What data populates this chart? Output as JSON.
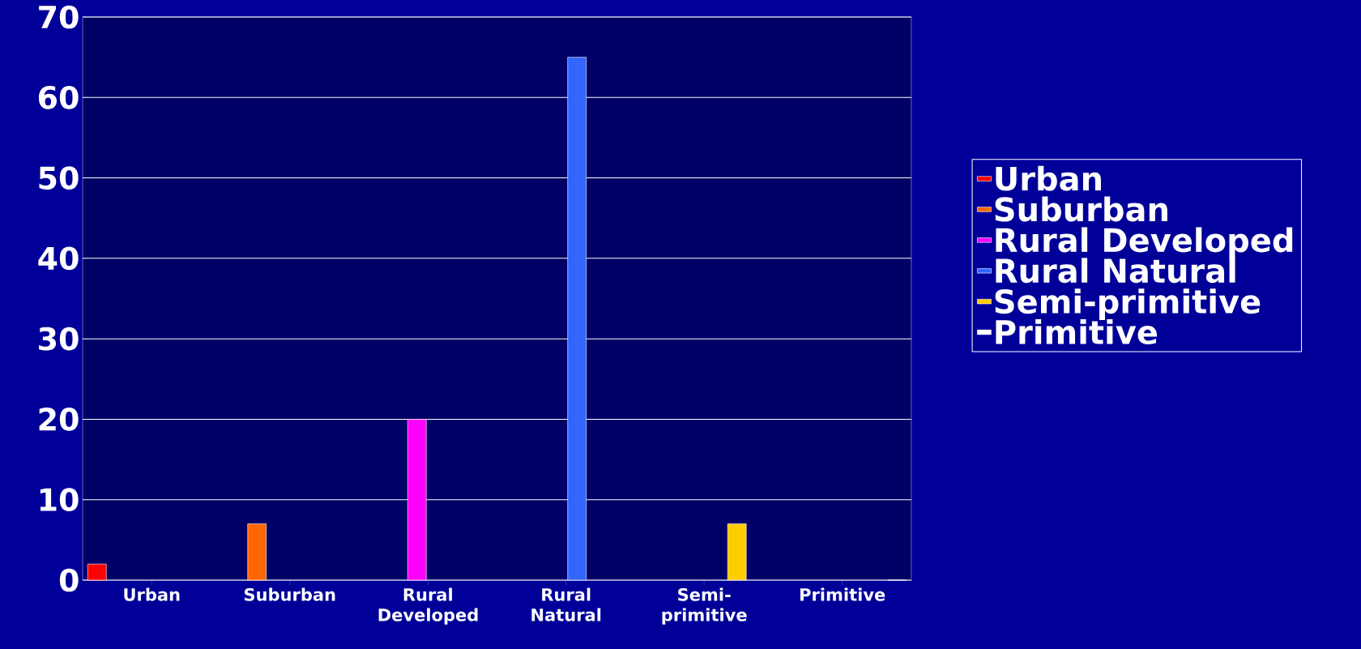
{
  "chart_data": {
    "type": "bar",
    "categories": [
      "Urban",
      "Suburban",
      "Rural Developed",
      "Rural Natural",
      "Semi-primitive",
      "Primitive"
    ],
    "series": [
      {
        "name": "Urban",
        "color": "#ff0000",
        "values": [
          2,
          null,
          null,
          null,
          null,
          null
        ]
      },
      {
        "name": "Suburban",
        "color": "#ff6600",
        "values": [
          null,
          7,
          null,
          null,
          null,
          null
        ]
      },
      {
        "name": "Rural Developed",
        "color": "#ff00ff",
        "values": [
          null,
          null,
          20,
          null,
          null,
          null
        ]
      },
      {
        "name": "Rural Natural",
        "color": "#3366ff",
        "values": [
          null,
          null,
          null,
          65,
          null,
          null
        ]
      },
      {
        "name": "Semi-primitive",
        "color": "#ffcc00",
        "values": [
          null,
          null,
          null,
          null,
          7,
          null
        ]
      },
      {
        "name": "Primitive",
        "color": "#ffffff",
        "values": [
          null,
          null,
          null,
          null,
          null,
          0
        ]
      }
    ],
    "ylim": [
      0,
      70
    ],
    "yticks": [
      0,
      10,
      20,
      30,
      40,
      50,
      60,
      70
    ],
    "grid": "y",
    "legend": "right"
  }
}
